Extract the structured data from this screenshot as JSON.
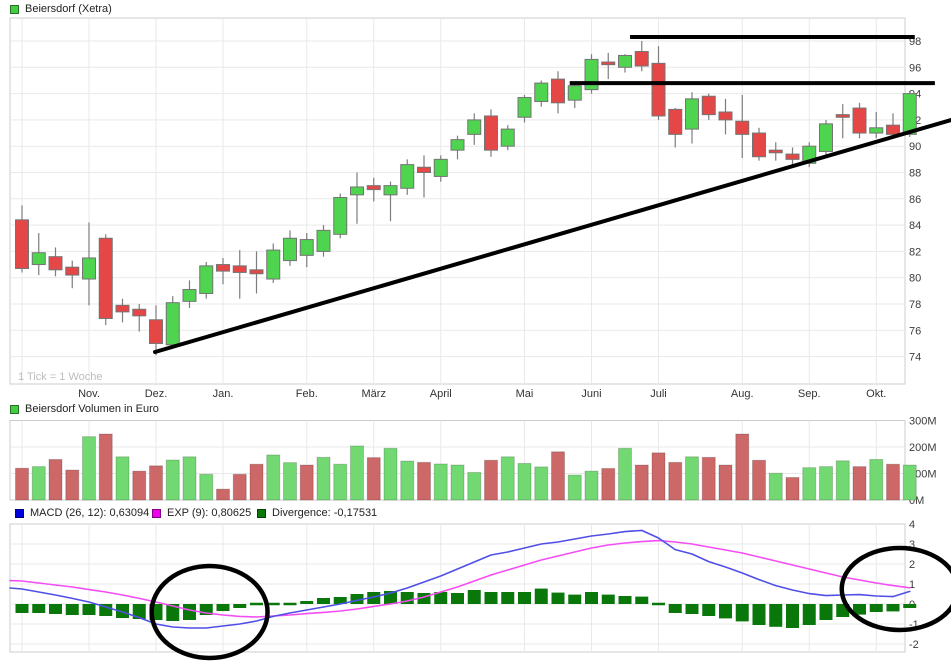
{
  "colors": {
    "candle_up": "#4ed44e",
    "candle_down": "#e54747",
    "candle_border": "#747474",
    "wick": "#7d7d7d",
    "volume_up": "#72d872",
    "volume_down": "#cc6868",
    "macd_line": "#4f4fe8",
    "exp_line": "#f44df4",
    "divergence_bar": "#0a770a",
    "title_swatch": "#44cc44",
    "legend_macd_swatch": "#0000dd",
    "legend_exp_swatch": "#ee00ee",
    "legend_div_swatch": "#0a770a",
    "grid": "#e9e9e9",
    "panel_border": "#cccccc",
    "axis_text": "#3c3c3c",
    "annotation": "#000000"
  },
  "chart_data": [
    {
      "type": "candlestick",
      "title": "Beiersdorf (Xetra)",
      "timeframe_note": "1 Tick = 1 Woche",
      "ylabel": "",
      "ylim": [
        71.9,
        99.2
      ],
      "y_ticks": [
        74,
        76,
        78,
        80,
        82,
        84,
        86,
        88,
        90,
        92,
        94,
        96,
        98
      ],
      "x_ticks": [
        {
          "label": "",
          "week": 0
        },
        {
          "label": "Nov.",
          "week": 4
        },
        {
          "label": "Dez.",
          "week": 8
        },
        {
          "label": "Jan.",
          "week": 12
        },
        {
          "label": "Feb.",
          "week": 17
        },
        {
          "label": "März",
          "week": 21
        },
        {
          "label": "April",
          "week": 25
        },
        {
          "label": "Mai",
          "week": 30
        },
        {
          "label": "Juni",
          "week": 34
        },
        {
          "label": "Juli",
          "week": 38
        },
        {
          "label": "Aug.",
          "week": 43
        },
        {
          "label": "Sep.",
          "week": 47
        },
        {
          "label": "Okt.",
          "week": 51
        }
      ],
      "ohlc": [
        [
          84.4,
          85.5,
          80.4,
          80.7
        ],
        [
          81.0,
          83.4,
          80.2,
          81.9
        ],
        [
          81.6,
          82.3,
          80.1,
          80.6
        ],
        [
          80.8,
          81.3,
          79.2,
          80.2
        ],
        [
          79.9,
          84.2,
          77.9,
          81.5
        ],
        [
          83.0,
          83.3,
          76.4,
          76.9
        ],
        [
          77.9,
          78.4,
          76.6,
          77.4
        ],
        [
          77.6,
          78.0,
          75.9,
          77.1
        ],
        [
          76.8,
          77.9,
          74.1,
          75.0
        ],
        [
          74.9,
          78.6,
          74.6,
          78.1
        ],
        [
          78.2,
          79.8,
          77.7,
          79.1
        ],
        [
          78.8,
          81.2,
          78.4,
          80.9
        ],
        [
          81.0,
          81.5,
          79.5,
          80.5
        ],
        [
          80.9,
          82.1,
          78.4,
          80.4
        ],
        [
          80.6,
          82.0,
          78.8,
          80.3
        ],
        [
          79.9,
          82.6,
          79.6,
          82.1
        ],
        [
          81.3,
          83.6,
          80.9,
          83.0
        ],
        [
          81.7,
          83.4,
          80.8,
          82.9
        ],
        [
          82.0,
          84.0,
          81.6,
          83.6
        ],
        [
          83.3,
          86.4,
          83.0,
          86.1
        ],
        [
          86.3,
          88.0,
          84.1,
          86.9
        ],
        [
          87.0,
          87.6,
          85.8,
          86.7
        ],
        [
          86.3,
          87.3,
          84.3,
          87.0
        ],
        [
          86.8,
          89.0,
          86.3,
          88.6
        ],
        [
          88.4,
          89.3,
          86.1,
          88.0
        ],
        [
          87.7,
          89.3,
          87.3,
          89.0
        ],
        [
          89.7,
          90.8,
          89.0,
          90.5
        ],
        [
          90.9,
          92.5,
          90.1,
          92.0
        ],
        [
          92.3,
          92.8,
          89.2,
          89.7
        ],
        [
          90.0,
          91.6,
          89.7,
          91.3
        ],
        [
          92.2,
          93.9,
          91.8,
          93.7
        ],
        [
          93.4,
          95.0,
          93.0,
          94.8
        ],
        [
          95.1,
          95.7,
          92.5,
          93.3
        ],
        [
          93.5,
          94.8,
          92.9,
          94.6
        ],
        [
          94.3,
          97.0,
          94.0,
          96.6
        ],
        [
          96.4,
          97.1,
          95.1,
          96.2
        ],
        [
          96.0,
          97.0,
          95.6,
          96.9
        ],
        [
          97.2,
          98.0,
          95.7,
          96.1
        ],
        [
          96.3,
          97.6,
          92.0,
          92.3
        ],
        [
          92.8,
          92.9,
          89.9,
          90.9
        ],
        [
          91.3,
          94.1,
          90.2,
          93.6
        ],
        [
          93.8,
          94.0,
          92.0,
          92.4
        ],
        [
          92.6,
          93.6,
          90.9,
          92.0
        ],
        [
          91.9,
          93.9,
          89.1,
          90.9
        ],
        [
          91.0,
          91.4,
          88.9,
          89.2
        ],
        [
          89.7,
          90.3,
          88.9,
          89.5
        ],
        [
          89.4,
          89.9,
          88.6,
          89.0
        ],
        [
          88.7,
          90.3,
          88.4,
          90.0
        ],
        [
          89.6,
          92.0,
          89.3,
          91.7
        ],
        [
          92.4,
          93.2,
          90.6,
          92.2
        ],
        [
          92.9,
          93.3,
          90.6,
          91.0
        ],
        [
          91.0,
          92.6,
          90.6,
          91.4
        ],
        [
          91.6,
          92.5,
          90.8,
          90.9
        ],
        [
          90.9,
          94.2,
          90.7,
          94.0
        ]
      ],
      "annotations": {
        "resistance_lines": [
          {
            "price": 98.3,
            "week_from": 36.3,
            "week_to": 53.3
          },
          {
            "price": 94.8,
            "week_from": 32.7,
            "week_to": 54.5
          }
        ],
        "trendline": {
          "week_from": 7.94,
          "price_from": 74.35,
          "week_to": 55.46,
          "price_to": 91.99
        }
      }
    },
    {
      "type": "bar",
      "title": "Beiersdorf Volumen in Euro",
      "ylim": [
        0,
        300
      ],
      "y_ticks": [
        {
          "label": "300M",
          "v": 300
        },
        {
          "label": "200M",
          "v": 200
        },
        {
          "label": "100M",
          "v": 100
        },
        {
          "label": "0M",
          "v": 0
        }
      ],
      "values": [
        120,
        126,
        153,
        113,
        239,
        249,
        163,
        109,
        129,
        151,
        163,
        97,
        41,
        97,
        135,
        170,
        141,
        132,
        161,
        135,
        204,
        160,
        195,
        147,
        142,
        136,
        132,
        104,
        150,
        163,
        138,
        125,
        182,
        94,
        109,
        119,
        195,
        132,
        178,
        142,
        163,
        161,
        132,
        249,
        150,
        101,
        85,
        122,
        126,
        148,
        126,
        153,
        135,
        132
      ],
      "direction": [
        "d",
        "u",
        "d",
        "d",
        "u",
        "d",
        "u",
        "d",
        "d",
        "u",
        "u",
        "u",
        "d",
        "d",
        "d",
        "u",
        "u",
        "d",
        "u",
        "u",
        "u",
        "d",
        "u",
        "u",
        "d",
        "u",
        "u",
        "u",
        "d",
        "u",
        "u",
        "u",
        "d",
        "u",
        "u",
        "d",
        "u",
        "d",
        "d",
        "d",
        "u",
        "d",
        "d",
        "d",
        "d",
        "u",
        "d",
        "u",
        "u",
        "u",
        "d",
        "u",
        "d",
        "u"
      ]
    },
    {
      "type": "line",
      "legend": {
        "macd": "MACD (26, 12): 0,63094",
        "exp": "EXP (9): 0,80625",
        "divergence": "Divergence: -0,17531"
      },
      "ylim": [
        -2.4,
        4.0
      ],
      "y_ticks": [
        4,
        3,
        2,
        1,
        0,
        -1,
        -2
      ],
      "series": [
        {
          "name": "MACD",
          "values": [
            0.75,
            0.6,
            0.45,
            0.28,
            0.1,
            -0.15,
            -0.4,
            -0.68,
            -1.0,
            -1.15,
            -1.2,
            -1.2,
            -1.1,
            -1.0,
            -0.85,
            -0.62,
            -0.45,
            -0.3,
            -0.15,
            0.0,
            0.18,
            0.35,
            0.55,
            0.8,
            1.1,
            1.4,
            1.75,
            2.1,
            2.45,
            2.6,
            2.8,
            3.0,
            3.1,
            3.25,
            3.4,
            3.5,
            3.62,
            3.68,
            3.3,
            2.72,
            2.5,
            2.12,
            1.85,
            1.55,
            1.22,
            0.92,
            0.7,
            0.52,
            0.42,
            0.45,
            0.47,
            0.4,
            0.37,
            0.63
          ]
        },
        {
          "name": "EXP",
          "values": [
            1.15,
            1.05,
            0.95,
            0.85,
            0.72,
            0.6,
            0.45,
            0.28,
            0.1,
            -0.1,
            -0.3,
            -0.45,
            -0.55,
            -0.62,
            -0.65,
            -0.6,
            -0.55,
            -0.48,
            -0.42,
            -0.35,
            -0.25,
            -0.12,
            0.0,
            0.15,
            0.35,
            0.6,
            0.85,
            1.15,
            1.45,
            1.7,
            1.95,
            2.2,
            2.4,
            2.6,
            2.8,
            2.95,
            3.05,
            3.12,
            3.17,
            3.1,
            3.0,
            2.85,
            2.7,
            2.55,
            2.35,
            2.15,
            1.95,
            1.75,
            1.55,
            1.35,
            1.2,
            1.05,
            0.92,
            0.81
          ]
        },
        {
          "name": "Divergence",
          "values": [
            -0.45,
            -0.45,
            -0.5,
            -0.55,
            -0.55,
            -0.6,
            -0.7,
            -0.75,
            -0.8,
            -0.85,
            -0.8,
            -0.55,
            -0.35,
            -0.2,
            -0.1,
            -0.05,
            0.05,
            0.15,
            0.3,
            0.35,
            0.5,
            0.6,
            0.65,
            0.6,
            0.55,
            0.6,
            0.55,
            0.7,
            0.6,
            0.6,
            0.6,
            0.77,
            0.57,
            0.47,
            0.6,
            0.47,
            0.4,
            0.37,
            -0.08,
            -0.45,
            -0.5,
            -0.6,
            -0.72,
            -0.87,
            -1.05,
            -1.14,
            -1.2,
            -1.05,
            -0.8,
            -0.65,
            -0.53,
            -0.4,
            -0.37,
            -0.2
          ]
        }
      ],
      "annotations": {
        "ellipses": [
          {
            "week": 11.2,
            "value": -0.4,
            "rx_weeks": 3.46,
            "ry_values": 2.3
          },
          {
            "week": 52.4,
            "value": 0.75,
            "rx_weeks": 3.46,
            "ry_values": 2.05
          }
        ]
      }
    }
  ]
}
